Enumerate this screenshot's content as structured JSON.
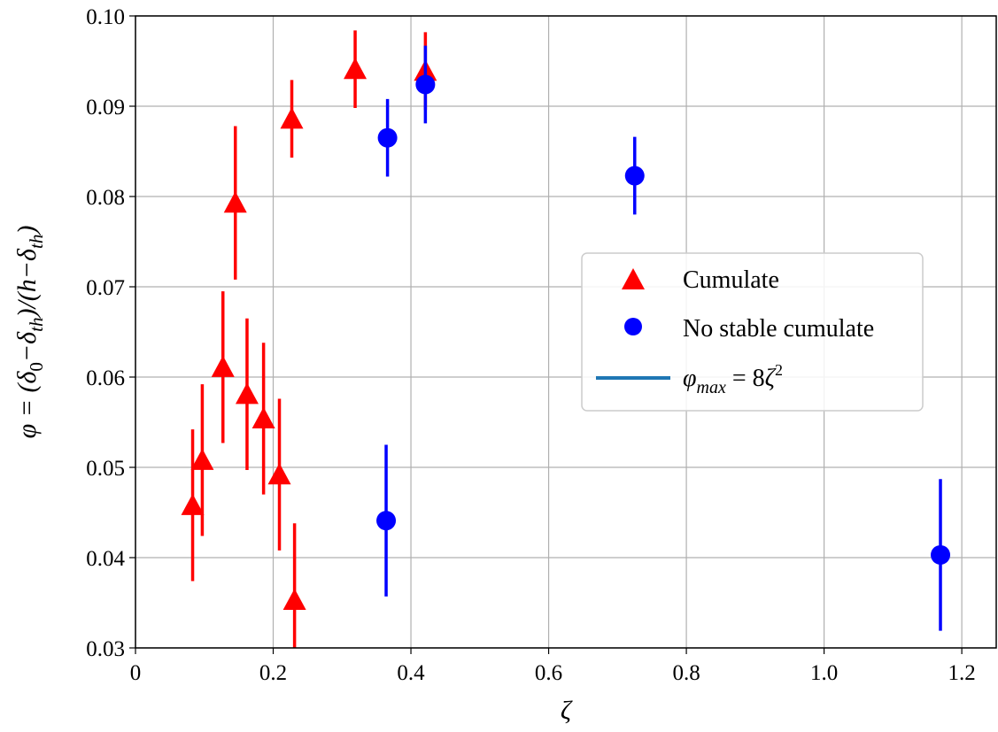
{
  "chart_data": {
    "type": "scatter",
    "xlabel": "ζ",
    "ylabel": "φ = (δ0 − δth)/(h − δth)",
    "xlim": [
      0,
      1.25
    ],
    "ylim": [
      0.03,
      0.1
    ],
    "xticks": [
      "0",
      "0.2",
      "0.4",
      "0.6",
      "0.8",
      "1.0",
      "1.2"
    ],
    "yticks": [
      "0.03",
      "0.04",
      "0.05",
      "0.06",
      "0.07",
      "0.08",
      "0.09",
      "0.10"
    ],
    "grid": true,
    "legend_position": "center-right",
    "series": [
      {
        "name": "Cumulate",
        "marker": "triangle",
        "color": "#ff0000",
        "points": [
          {
            "x": 0.083,
            "y": 0.0458,
            "err": 0.0084
          },
          {
            "x": 0.097,
            "y": 0.0508,
            "err": 0.0084
          },
          {
            "x": 0.127,
            "y": 0.0611,
            "err": 0.0084
          },
          {
            "x": 0.145,
            "y": 0.0793,
            "err": 0.0085
          },
          {
            "x": 0.162,
            "y": 0.0581,
            "err": 0.0084
          },
          {
            "x": 0.186,
            "y": 0.0554,
            "err": 0.0084
          },
          {
            "x": 0.209,
            "y": 0.0492,
            "err": 0.0084
          },
          {
            "x": 0.231,
            "y": 0.0353,
            "err": 0.0085
          },
          {
            "x": 0.227,
            "y": 0.0886,
            "err": 0.0043
          },
          {
            "x": 0.319,
            "y": 0.0941,
            "err": 0.0043
          },
          {
            "x": 0.421,
            "y": 0.0939,
            "err": 0.0043
          }
        ]
      },
      {
        "name": "No stable cumulate",
        "marker": "circle",
        "color": "#0000ff",
        "points": [
          {
            "x": 0.366,
            "y": 0.0865,
            "err": 0.0043
          },
          {
            "x": 0.364,
            "y": 0.0441,
            "err": 0.0084
          },
          {
            "x": 0.421,
            "y": 0.0924,
            "err": 0.0043
          },
          {
            "x": 0.725,
            "y": 0.0823,
            "err": 0.0043
          },
          {
            "x": 1.169,
            "y": 0.0403,
            "err": 0.0084
          }
        ]
      }
    ],
    "curve": {
      "name": "φmax = 8ζ²",
      "color": "#1f77b4",
      "formula_coefficient": 8,
      "exponent": 2
    }
  }
}
